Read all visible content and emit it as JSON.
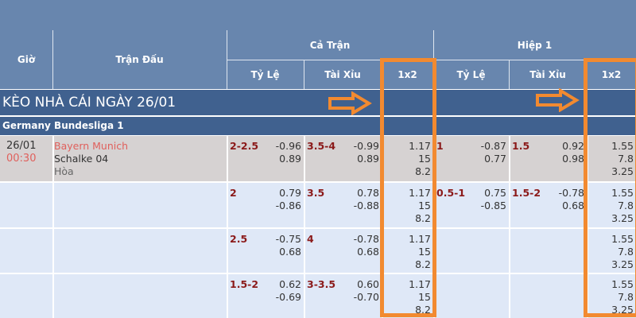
{
  "header": {
    "time": "Giờ",
    "match": "Trận Đấu",
    "full_time": "Cả Trận",
    "first_half": "Hiệp 1",
    "handicap": "Tỷ Lệ",
    "over_under": "Tài Xỉu",
    "one_x_two": "1x2"
  },
  "section_title": "KÈO NHÀ CÁI NGÀY 26/01",
  "league": "Germany Bundesliga 1",
  "match": {
    "date": "26/01",
    "time": "00:30",
    "home": "Bayern Munich",
    "away": "Schalke 04",
    "draw": "Hòa"
  },
  "rows": [
    {
      "ft_hdp": "2-2.5",
      "ft_hdp_odds": [
        "-0.96",
        "0.89"
      ],
      "ft_ou": "3.5-4",
      "ft_ou_odds": [
        "-0.99",
        "0.89"
      ],
      "ft_1x2": [
        "1.17",
        "15",
        "8.2"
      ],
      "h1_hdp": "1",
      "h1_hdp_odds": [
        "-0.87",
        "0.77"
      ],
      "h1_ou": "1.5",
      "h1_ou_odds": [
        "0.92",
        "0.98"
      ],
      "h1_1x2": [
        "1.55",
        "7.8",
        "3.25"
      ]
    },
    {
      "ft_hdp": "2",
      "ft_hdp_odds": [
        "0.79",
        "-0.86"
      ],
      "ft_ou": "3.5",
      "ft_ou_odds": [
        "0.78",
        "-0.88"
      ],
      "ft_1x2": [
        "1.17",
        "15",
        "8.2"
      ],
      "h1_hdp": "0.5-1",
      "h1_hdp_odds": [
        "0.75",
        "-0.85"
      ],
      "h1_ou": "1.5-2",
      "h1_ou_odds": [
        "-0.78",
        "0.68"
      ],
      "h1_1x2": [
        "1.55",
        "7.8",
        "3.25"
      ]
    },
    {
      "ft_hdp": "2.5",
      "ft_hdp_odds": [
        "-0.75",
        "0.68"
      ],
      "ft_ou": "4",
      "ft_ou_odds": [
        "-0.78",
        "0.68"
      ],
      "ft_1x2": [
        "1.17",
        "15",
        "8.2"
      ],
      "h1_hdp": "",
      "h1_hdp_odds": [
        "",
        ""
      ],
      "h1_ou": "",
      "h1_ou_odds": [
        "",
        ""
      ],
      "h1_1x2": [
        "1.55",
        "7.8",
        "3.25"
      ]
    },
    {
      "ft_hdp": "1.5-2",
      "ft_hdp_odds": [
        "0.62",
        "-0.69"
      ],
      "ft_ou": "3-3.5",
      "ft_ou_odds": [
        "0.60",
        "-0.70"
      ],
      "ft_1x2": [
        "1.17",
        "15",
        "8.2"
      ],
      "h1_hdp": "",
      "h1_hdp_odds": [
        "",
        ""
      ],
      "h1_ou": "",
      "h1_ou_odds": [
        "",
        ""
      ],
      "h1_1x2": [
        "1.55",
        "7.8",
        "3.25"
      ]
    }
  ],
  "colors": {
    "header": "#6886ae",
    "section": "#40618f",
    "highlight": "#f28a30",
    "first_row": "#d6d2d2",
    "other_rows": "#dfe8f7",
    "line_text": "#8b1a1a",
    "home_team": "#e0605c"
  }
}
